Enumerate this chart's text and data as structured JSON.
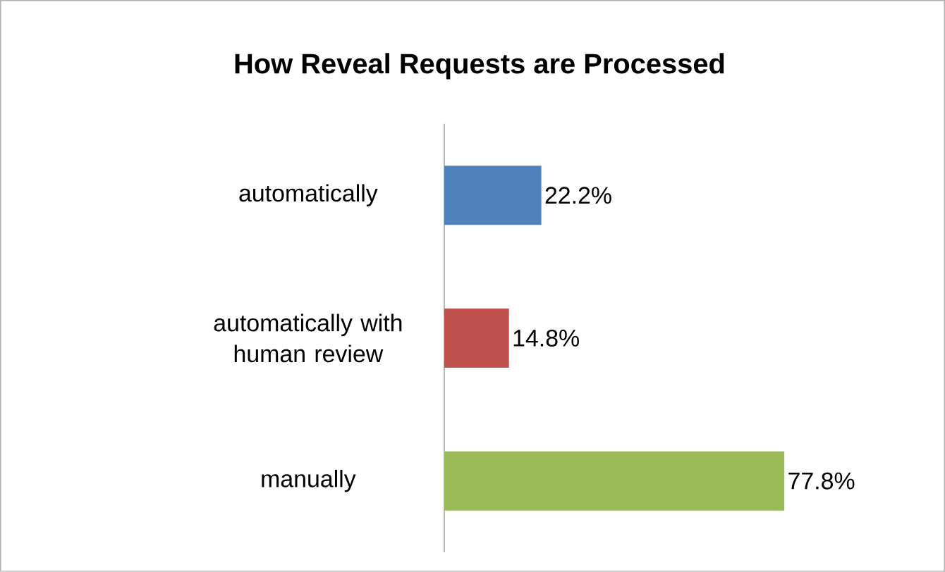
{
  "chart_data": {
    "type": "bar",
    "orientation": "horizontal",
    "title": "How Reveal Requests are Processed",
    "categories": [
      "automatically",
      "automatically with human review",
      "manually"
    ],
    "values": [
      22.2,
      14.8,
      77.8
    ],
    "value_labels": [
      "22.2%",
      "14.8%",
      "77.8%"
    ],
    "colors": [
      "#4f81bd",
      "#c0504d",
      "#9bbb59"
    ]
  }
}
